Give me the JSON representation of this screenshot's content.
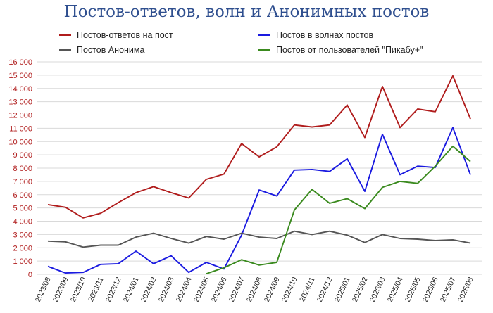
{
  "chart_data": {
    "type": "line",
    "title": "Постов-ответов, волн и Анонимных постов",
    "xlabel": "",
    "ylabel": "",
    "ylim": [
      0,
      16000
    ],
    "yticks": [
      "0",
      "1 000",
      "2 000",
      "3 000",
      "4 000",
      "5 000",
      "6 000",
      "7 000",
      "8 000",
      "9 000",
      "10 000",
      "11 000",
      "12 000",
      "13 000",
      "14 000",
      "15 000",
      "16 000"
    ],
    "grid": true,
    "legend_position": "top",
    "categories": [
      "2023/08",
      "2023/09",
      "2023/10",
      "2023/11",
      "2023/12",
      "2024/01",
      "2024/02",
      "2024/03",
      "2024/04",
      "2024/05",
      "2024/06",
      "2024/07",
      "2024/08",
      "2024/09",
      "2024/10",
      "2024/11",
      "2024/12",
      "2025/01",
      "2025/02",
      "2025/03",
      "2025/04",
      "2025/05",
      "2025/06",
      "2025/07",
      "2025/08"
    ],
    "series": [
      {
        "name": "Постов-ответов на пост",
        "color": "#b01c1c",
        "values": [
          5250,
          5050,
          4250,
          4600,
          5400,
          6150,
          6600,
          6150,
          5750,
          7150,
          7550,
          9850,
          8850,
          9600,
          11250,
          11100,
          11250,
          12750,
          10300,
          14150,
          11050,
          12450,
          12250,
          14950,
          11700
        ]
      },
      {
        "name": "Постов в волнах постов",
        "color": "#1a1ae0",
        "values": [
          600,
          100,
          150,
          750,
          800,
          1750,
          800,
          1400,
          150,
          900,
          400,
          2950,
          6350,
          5900,
          7850,
          7900,
          7750,
          8700,
          6250,
          10550,
          7500,
          8150,
          8050,
          11050,
          7500
        ]
      },
      {
        "name": "Постов Анонима",
        "color": "#555555",
        "values": [
          2500,
          2450,
          2050,
          2200,
          2200,
          2800,
          3100,
          2700,
          2350,
          2850,
          2650,
          3100,
          2800,
          2700,
          3250,
          3000,
          3250,
          2950,
          2400,
          3000,
          2700,
          2650,
          2550,
          2600,
          2350
        ]
      },
      {
        "name": "Постов от пользователей \"Пикабу+\"",
        "color": "#3a8a1e",
        "values": [
          null,
          null,
          null,
          null,
          null,
          null,
          null,
          null,
          null,
          50,
          500,
          1100,
          700,
          900,
          4850,
          6400,
          5350,
          5700,
          4950,
          6550,
          7000,
          6850,
          8150,
          9650,
          8500
        ]
      }
    ]
  }
}
